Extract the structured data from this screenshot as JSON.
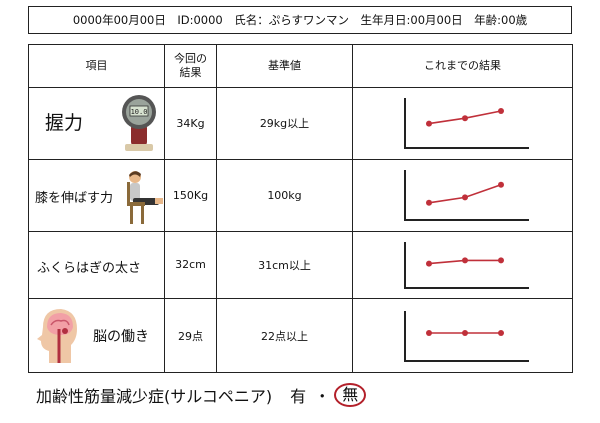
{
  "header": {
    "info": "0000年00月00日　ID:0000　氏名：ぷらすワンマン　生年月日:00月00日　年齢:00歳"
  },
  "table": {
    "columns": [
      "項目",
      "今回の\n結果",
      "基準値",
      "これまでの結果"
    ],
    "rows": [
      {
        "item": "握力",
        "icon": "grip-dynamometer-icon",
        "result": "34Kg",
        "standard": "29kg以上",
        "history": [
          40,
          55,
          75
        ]
      },
      {
        "item": "膝を伸ばす力",
        "icon": "seated-leg-extension-icon",
        "result": "150Kg",
        "standard": "100kg",
        "history": [
          20,
          35,
          70
        ]
      },
      {
        "item": "ふくらはぎの太さ",
        "icon": "",
        "result": "32cm",
        "standard": "31cm以上",
        "history": [
          45,
          55,
          55
        ]
      },
      {
        "item": "脳の働き",
        "icon": "brain-head-profile-icon",
        "result": "29点",
        "standard": "22点以上",
        "history": [
          50,
          50,
          50
        ]
      }
    ]
  },
  "footer": {
    "diagnosis_label": "加齢性筋量減少症(サルコペニア)",
    "option_yes": "有",
    "separator": "・",
    "option_no": "無",
    "circled_color": "#b3202a"
  },
  "colors": {
    "line": "#c0303a",
    "axis": "#222222"
  }
}
